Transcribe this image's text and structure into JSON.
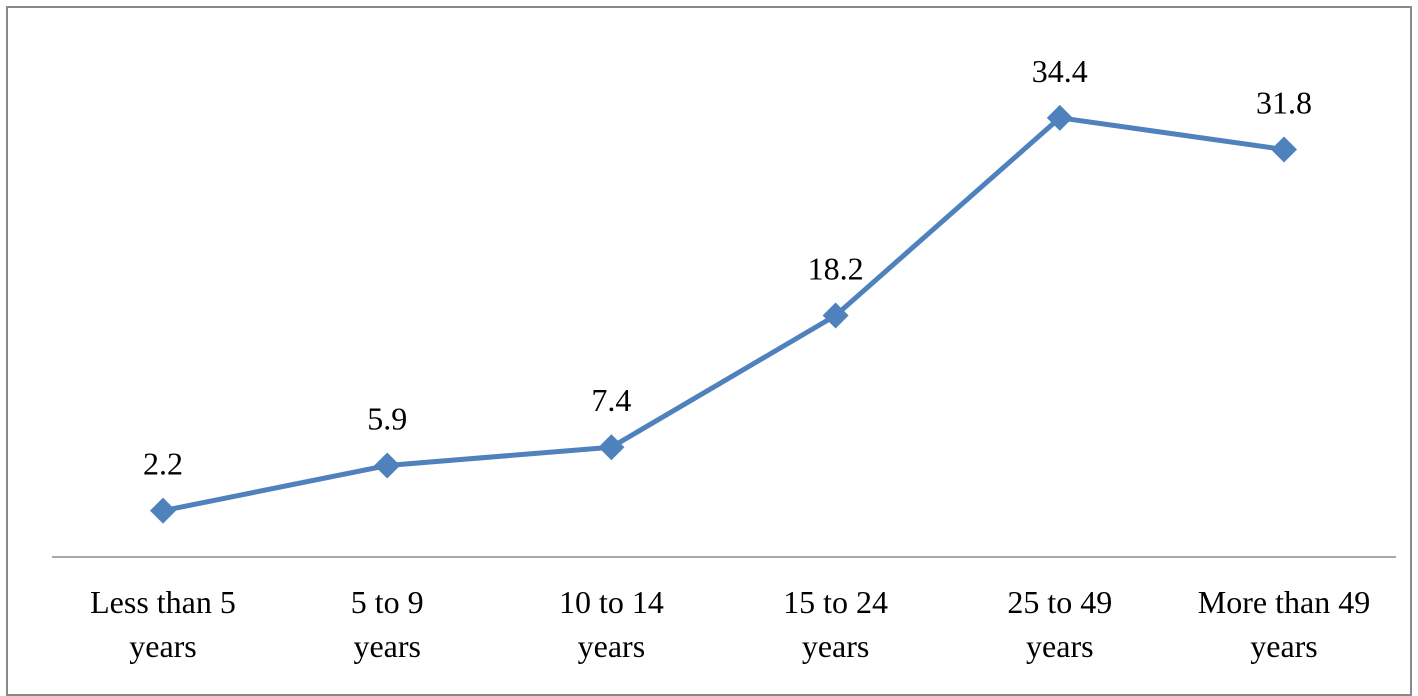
{
  "chart_data": {
    "type": "line",
    "title": "",
    "xlabel": "",
    "ylabel": "",
    "categories": [
      [
        "Less than 5",
        "years"
      ],
      [
        "5 to 9",
        "years"
      ],
      [
        "10 to 14",
        "years"
      ],
      [
        "15 to 24",
        "years"
      ],
      [
        "25 to 49",
        "years"
      ],
      [
        "More than 49",
        "years"
      ]
    ],
    "series": [
      {
        "values": [
          2.2,
          5.9,
          7.4,
          18.2,
          34.4,
          31.8
        ],
        "color": "#4f81bd",
        "marker": "diamond"
      }
    ],
    "data_labels": [
      "2.2",
      "5.9",
      "7.4",
      "18.2",
      "34.4",
      "31.8"
    ],
    "grid": false,
    "legend": "none"
  }
}
